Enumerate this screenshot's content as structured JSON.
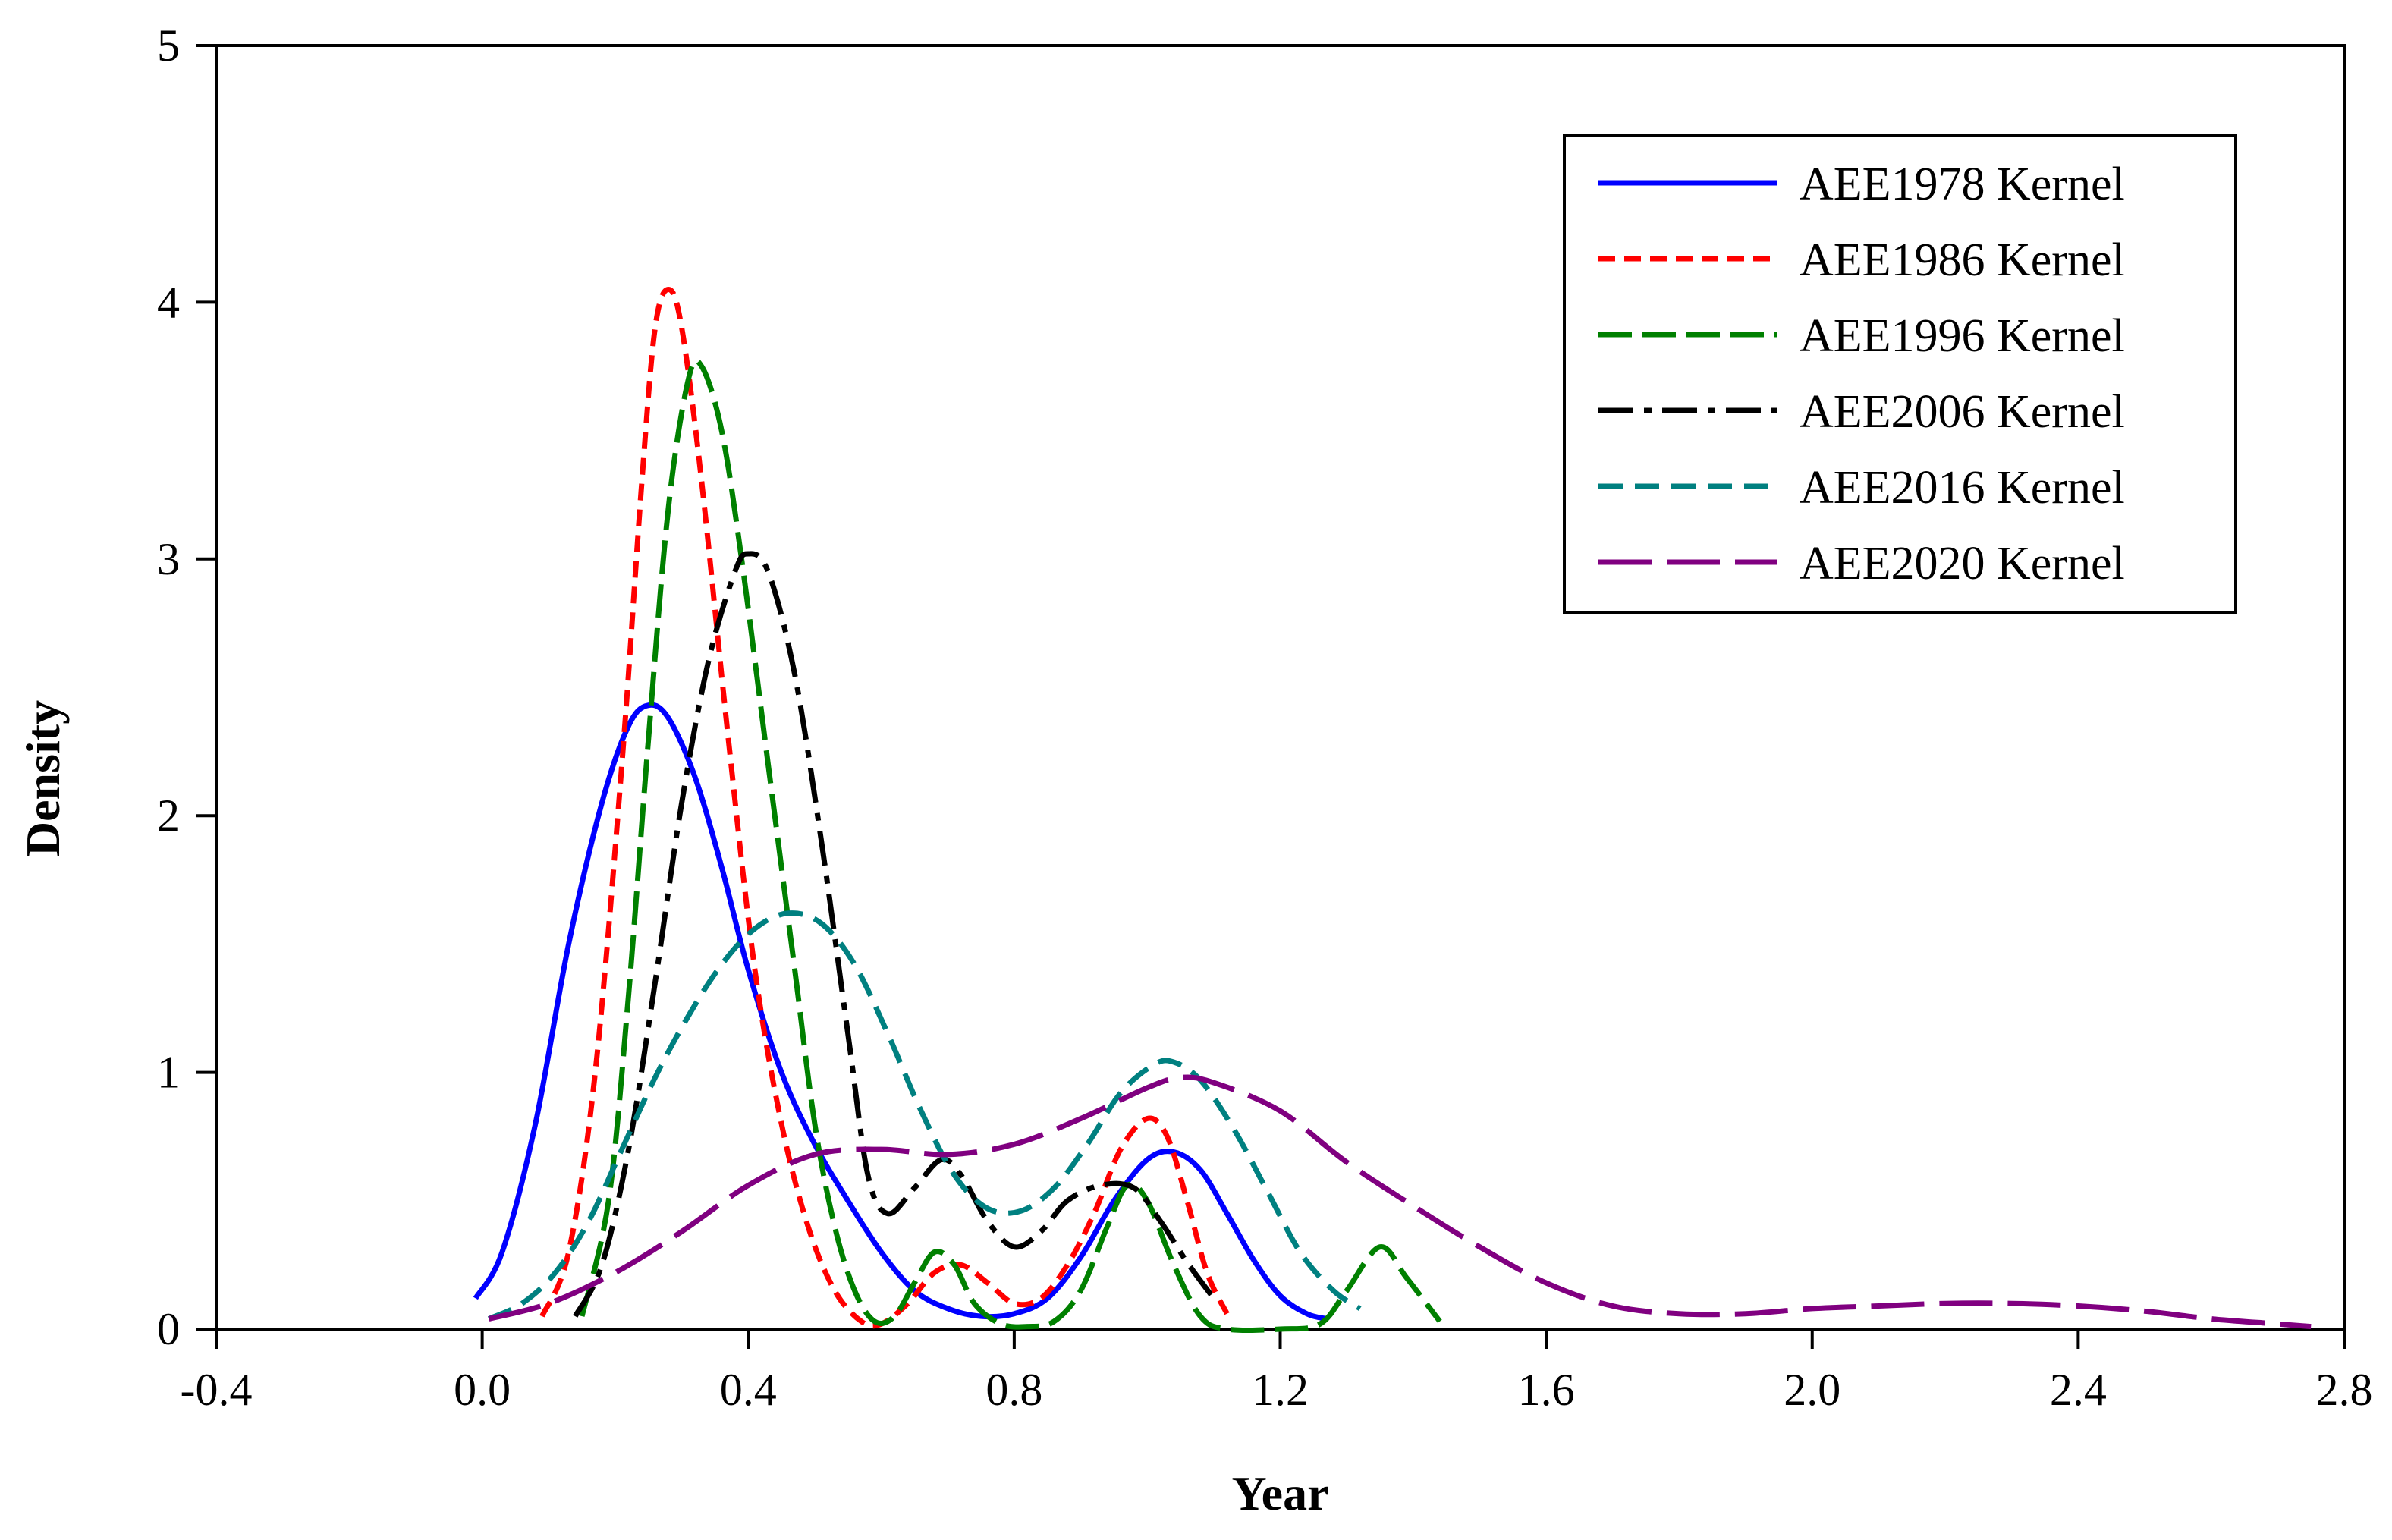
{
  "chart_data": {
    "type": "line",
    "title": "",
    "xlabel": "Year",
    "ylabel": "Density",
    "xlim": [
      -0.4,
      2.8
    ],
    "ylim": [
      0,
      5
    ],
    "xticks": [
      "-0.4",
      "0.0",
      "0.4",
      "0.8",
      "1.2",
      "1.6",
      "2.0",
      "2.4",
      "2.8"
    ],
    "yticks": [
      "0",
      "1",
      "2",
      "3",
      "4",
      "5"
    ],
    "legend_position": "top-right",
    "series": [
      {
        "name": "AEE1978 Kernel",
        "color": "#0000ff",
        "dash": "solid",
        "points": [
          [
            -0.01,
            0.12
          ],
          [
            0.03,
            0.3
          ],
          [
            0.08,
            0.8
          ],
          [
            0.13,
            1.5
          ],
          [
            0.18,
            2.05
          ],
          [
            0.22,
            2.35
          ],
          [
            0.25,
            2.43
          ],
          [
            0.28,
            2.38
          ],
          [
            0.32,
            2.15
          ],
          [
            0.36,
            1.8
          ],
          [
            0.4,
            1.4
          ],
          [
            0.45,
            1.0
          ],
          [
            0.5,
            0.72
          ],
          [
            0.55,
            0.5
          ],
          [
            0.6,
            0.3
          ],
          [
            0.65,
            0.15
          ],
          [
            0.7,
            0.08
          ],
          [
            0.75,
            0.05
          ],
          [
            0.8,
            0.06
          ],
          [
            0.85,
            0.12
          ],
          [
            0.9,
            0.28
          ],
          [
            0.95,
            0.5
          ],
          [
            1.0,
            0.66
          ],
          [
            1.04,
            0.69
          ],
          [
            1.08,
            0.62
          ],
          [
            1.12,
            0.45
          ],
          [
            1.16,
            0.27
          ],
          [
            1.2,
            0.13
          ],
          [
            1.24,
            0.06
          ],
          [
            1.27,
            0.04
          ]
        ]
      },
      {
        "name": "AEE1986 Kernel",
        "color": "#ff0000",
        "dash": "short",
        "points": [
          [
            0.09,
            0.05
          ],
          [
            0.13,
            0.3
          ],
          [
            0.17,
            1.0
          ],
          [
            0.21,
            2.2
          ],
          [
            0.24,
            3.3
          ],
          [
            0.26,
            3.9
          ],
          [
            0.28,
            4.05
          ],
          [
            0.3,
            3.9
          ],
          [
            0.33,
            3.3
          ],
          [
            0.37,
            2.3
          ],
          [
            0.41,
            1.4
          ],
          [
            0.45,
            0.8
          ],
          [
            0.49,
            0.4
          ],
          [
            0.53,
            0.15
          ],
          [
            0.57,
            0.03
          ],
          [
            0.6,
            0.02
          ],
          [
            0.64,
            0.1
          ],
          [
            0.68,
            0.22
          ],
          [
            0.72,
            0.25
          ],
          [
            0.76,
            0.18
          ],
          [
            0.8,
            0.1
          ],
          [
            0.84,
            0.12
          ],
          [
            0.88,
            0.25
          ],
          [
            0.92,
            0.45
          ],
          [
            0.96,
            0.7
          ],
          [
            1.0,
            0.82
          ],
          [
            1.03,
            0.75
          ],
          [
            1.06,
            0.5
          ],
          [
            1.09,
            0.22
          ],
          [
            1.12,
            0.06
          ]
        ]
      },
      {
        "name": "AEE1996 Kernel",
        "color": "#008000",
        "dash": "long",
        "points": [
          [
            0.15,
            0.05
          ],
          [
            0.19,
            0.5
          ],
          [
            0.22,
            1.3
          ],
          [
            0.25,
            2.3
          ],
          [
            0.28,
            3.2
          ],
          [
            0.31,
            3.7
          ],
          [
            0.33,
            3.75
          ],
          [
            0.36,
            3.5
          ],
          [
            0.39,
            3.0
          ],
          [
            0.43,
            2.2
          ],
          [
            0.47,
            1.4
          ],
          [
            0.5,
            0.8
          ],
          [
            0.53,
            0.4
          ],
          [
            0.56,
            0.15
          ],
          [
            0.59,
            0.03
          ],
          [
            0.62,
            0.05
          ],
          [
            0.65,
            0.18
          ],
          [
            0.68,
            0.3
          ],
          [
            0.71,
            0.25
          ],
          [
            0.74,
            0.1
          ],
          [
            0.78,
            0.02
          ],
          [
            0.82,
            0.01
          ],
          [
            0.86,
            0.03
          ],
          [
            0.9,
            0.15
          ],
          [
            0.94,
            0.4
          ],
          [
            0.97,
            0.56
          ],
          [
            1.0,
            0.5
          ],
          [
            1.04,
            0.25
          ],
          [
            1.08,
            0.05
          ],
          [
            1.12,
            0.0
          ],
          [
            1.2,
            0.0
          ],
          [
            1.26,
            0.02
          ],
          [
            1.3,
            0.15
          ],
          [
            1.35,
            0.32
          ],
          [
            1.39,
            0.2
          ],
          [
            1.44,
            0.03
          ]
        ]
      },
      {
        "name": "AEE2006 Kernel",
        "color": "#000000",
        "dash": "dashdot",
        "points": [
          [
            0.14,
            0.05
          ],
          [
            0.18,
            0.25
          ],
          [
            0.22,
            0.7
          ],
          [
            0.26,
            1.35
          ],
          [
            0.3,
            2.05
          ],
          [
            0.34,
            2.6
          ],
          [
            0.38,
            2.95
          ],
          [
            0.4,
            3.02
          ],
          [
            0.43,
            2.95
          ],
          [
            0.47,
            2.55
          ],
          [
            0.51,
            1.9
          ],
          [
            0.55,
            1.15
          ],
          [
            0.58,
            0.6
          ],
          [
            0.61,
            0.45
          ],
          [
            0.65,
            0.55
          ],
          [
            0.69,
            0.66
          ],
          [
            0.72,
            0.6
          ],
          [
            0.76,
            0.42
          ],
          [
            0.8,
            0.32
          ],
          [
            0.84,
            0.38
          ],
          [
            0.88,
            0.5
          ],
          [
            0.93,
            0.56
          ],
          [
            0.98,
            0.55
          ],
          [
            1.02,
            0.42
          ],
          [
            1.06,
            0.26
          ],
          [
            1.1,
            0.12
          ]
        ]
      },
      {
        "name": "AEE2016 Kernel",
        "color": "#008080",
        "dash": "medium",
        "points": [
          [
            0.01,
            0.04
          ],
          [
            0.06,
            0.1
          ],
          [
            0.11,
            0.22
          ],
          [
            0.16,
            0.42
          ],
          [
            0.21,
            0.7
          ],
          [
            0.26,
            0.98
          ],
          [
            0.31,
            1.22
          ],
          [
            0.36,
            1.42
          ],
          [
            0.41,
            1.56
          ],
          [
            0.46,
            1.62
          ],
          [
            0.51,
            1.58
          ],
          [
            0.56,
            1.42
          ],
          [
            0.61,
            1.15
          ],
          [
            0.66,
            0.85
          ],
          [
            0.71,
            0.6
          ],
          [
            0.76,
            0.47
          ],
          [
            0.81,
            0.46
          ],
          [
            0.86,
            0.55
          ],
          [
            0.91,
            0.72
          ],
          [
            0.96,
            0.92
          ],
          [
            1.01,
            1.03
          ],
          [
            1.04,
            1.04
          ],
          [
            1.08,
            0.97
          ],
          [
            1.13,
            0.78
          ],
          [
            1.18,
            0.54
          ],
          [
            1.23,
            0.3
          ],
          [
            1.28,
            0.15
          ],
          [
            1.32,
            0.08
          ]
        ]
      },
      {
        "name": "AEE2020 Kernel",
        "color": "#800080",
        "dash": "longlong",
        "points": [
          [
            0.01,
            0.04
          ],
          [
            0.1,
            0.1
          ],
          [
            0.2,
            0.22
          ],
          [
            0.3,
            0.38
          ],
          [
            0.4,
            0.56
          ],
          [
            0.5,
            0.68
          ],
          [
            0.6,
            0.7
          ],
          [
            0.7,
            0.68
          ],
          [
            0.8,
            0.72
          ],
          [
            0.9,
            0.82
          ],
          [
            1.0,
            0.94
          ],
          [
            1.05,
            0.98
          ],
          [
            1.1,
            0.96
          ],
          [
            1.2,
            0.85
          ],
          [
            1.3,
            0.65
          ],
          [
            1.4,
            0.48
          ],
          [
            1.5,
            0.32
          ],
          [
            1.6,
            0.18
          ],
          [
            1.7,
            0.09
          ],
          [
            1.8,
            0.06
          ],
          [
            1.9,
            0.06
          ],
          [
            2.0,
            0.08
          ],
          [
            2.1,
            0.09
          ],
          [
            2.2,
            0.1
          ],
          [
            2.3,
            0.1
          ],
          [
            2.4,
            0.09
          ],
          [
            2.5,
            0.07
          ],
          [
            2.6,
            0.04
          ],
          [
            2.7,
            0.02
          ],
          [
            2.75,
            0.01
          ]
        ]
      }
    ]
  }
}
